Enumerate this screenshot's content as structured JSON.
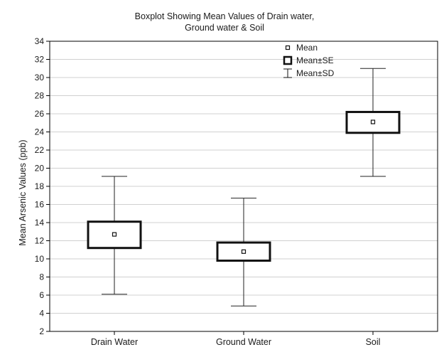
{
  "chart_data": {
    "type": "boxplot",
    "title_line1": "Boxplot Showing Mean Values of Drain water,",
    "title_line2": "Ground water & Soil",
    "ylabel": "Mean Arsenic Values (ppb)",
    "xlabel": "",
    "ylim": [
      2,
      34
    ],
    "yticks": [
      2,
      4,
      6,
      8,
      10,
      12,
      14,
      16,
      18,
      20,
      22,
      24,
      26,
      28,
      30,
      32,
      34
    ],
    "grid": true,
    "legend_position": "top-right",
    "legend": {
      "mean": "Mean",
      "se": "Mean±SE",
      "sd": "Mean±SD"
    },
    "categories": [
      "Drain Water",
      "Ground Water",
      "Soil"
    ],
    "series": [
      {
        "category": "Drain Water",
        "mean": 12.7,
        "se_low": 11.2,
        "se_high": 14.1,
        "sd_low": 6.1,
        "sd_high": 19.1
      },
      {
        "category": "Ground Water",
        "mean": 10.8,
        "se_low": 9.8,
        "se_high": 11.8,
        "sd_low": 4.8,
        "sd_high": 16.7
      },
      {
        "category": "Soil",
        "mean": 25.1,
        "se_low": 23.9,
        "se_high": 26.2,
        "sd_low": 19.1,
        "sd_high": 31.0
      }
    ]
  }
}
